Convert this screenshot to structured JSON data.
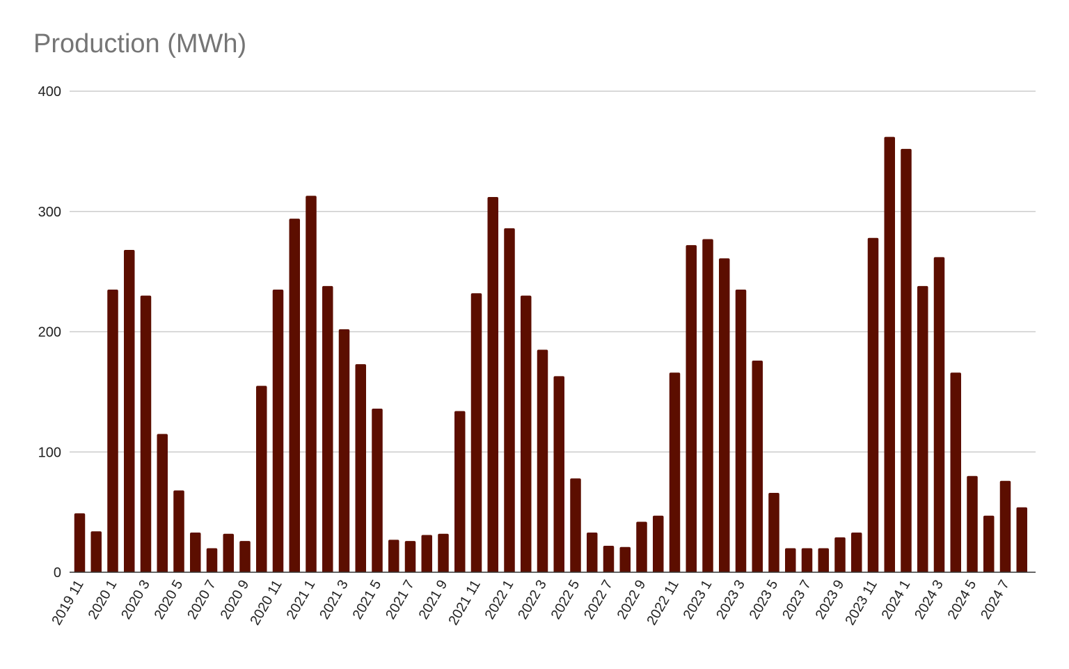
{
  "chart_data": {
    "type": "bar",
    "title": "Production (MWh)",
    "xlabel": "",
    "ylabel": "",
    "ylim": [
      0,
      400
    ],
    "yticks": [
      0,
      100,
      200,
      300,
      400
    ],
    "grid": true,
    "legend": "none",
    "bar_color": "#5c0e00",
    "categories": [
      "2019 11",
      "2019 12",
      "2020 1",
      "2020 2",
      "2020 3",
      "2020 4",
      "2020 5",
      "2020 6",
      "2020 7",
      "2020 8",
      "2020 9",
      "2020 10",
      "2020 11",
      "2020 12",
      "2021 1",
      "2021 2",
      "2021 3",
      "2021 4",
      "2021 5",
      "2021 6",
      "2021 7",
      "2021 8",
      "2021 9",
      "2021 10",
      "2021 11",
      "2021 12",
      "2022 1",
      "2022 2",
      "2022 3",
      "2022 4",
      "2022 5",
      "2022 6",
      "2022 7",
      "2022 8",
      "2022 9",
      "2022 10",
      "2022 11",
      "2022 12",
      "2023 1",
      "2023 2",
      "2023 3",
      "2023 4",
      "2023 5",
      "2023 6",
      "2023 7",
      "2023 8",
      "2023 9",
      "2023 10",
      "2023 11",
      "2023 12",
      "2024 1",
      "2024 2",
      "2024 3",
      "2024 4",
      "2024 5",
      "2024 6",
      "2024 7",
      "2024 8"
    ],
    "tick_labels": [
      "2019 11",
      "2020 1",
      "2020 3",
      "2020 5",
      "2020 7",
      "2020 9",
      "2020 11",
      "2021 1",
      "2021 3",
      "2021 5",
      "2021 7",
      "2021 9",
      "2021 11",
      "2022 1",
      "2022 3",
      "2022 5",
      "2022 7",
      "2022 9",
      "2022 11",
      "2023 1",
      "2023 3",
      "2023 5",
      "2023 7",
      "2023 9",
      "2023 11",
      "2024 1",
      "2024 3",
      "2024 5",
      "2024 7"
    ],
    "values": [
      49,
      34,
      235,
      268,
      230,
      115,
      68,
      33,
      20,
      32,
      26,
      155,
      235,
      294,
      313,
      238,
      202,
      173,
      136,
      27,
      26,
      31,
      32,
      134,
      232,
      312,
      286,
      230,
      185,
      163,
      78,
      33,
      22,
      21,
      42,
      47,
      166,
      272,
      277,
      261,
      235,
      176,
      66,
      20,
      20,
      20,
      29,
      33,
      278,
      362,
      352,
      238,
      262,
      166,
      80,
      47,
      76,
      54
    ]
  }
}
